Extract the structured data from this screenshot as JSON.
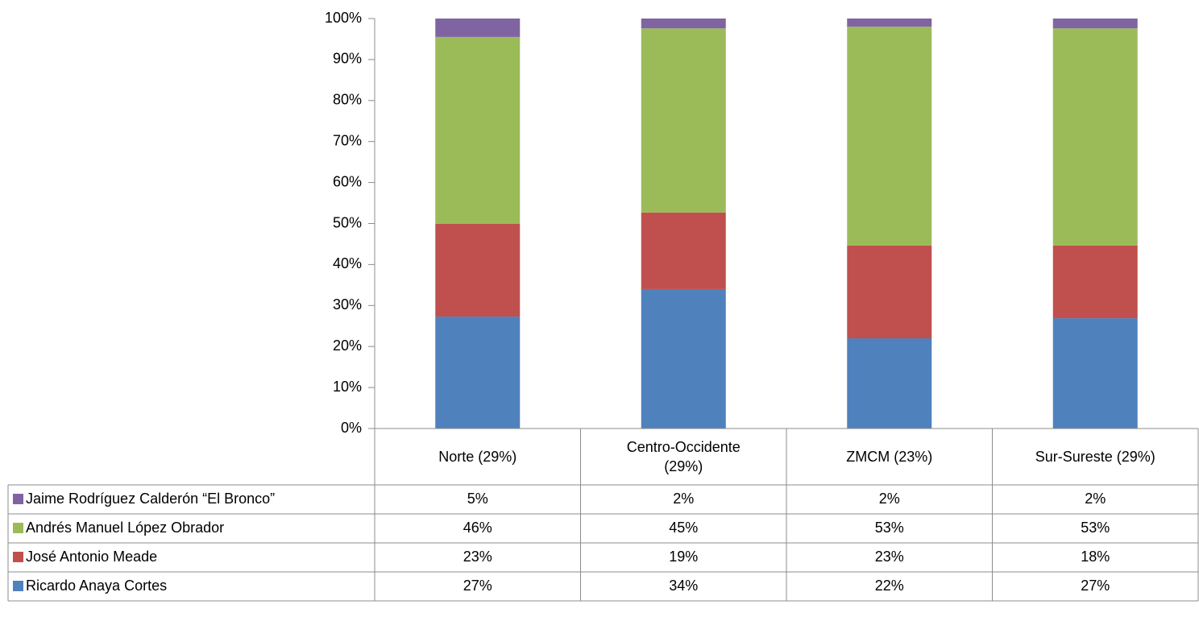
{
  "chart_data": {
    "type": "stacked_bar",
    "categories": [
      "Norte (29%)",
      "Centro-Occidente (29%)",
      "ZMCM (23%)",
      "Sur-Sureste (29%)"
    ],
    "series": [
      {
        "name": "Ricardo Anaya Cortes",
        "color": "#4f81bd",
        "values": [
          27.3,
          34.0,
          22.0,
          26.9
        ],
        "value_labels": [
          "27%",
          "34%",
          "22%",
          "27%"
        ]
      },
      {
        "name": "José Antonio Meade",
        "color": "#c0504d",
        "values": [
          22.6,
          18.7,
          22.6,
          17.7
        ],
        "value_labels": [
          "23%",
          "19%",
          "23%",
          "18%"
        ]
      },
      {
        "name": "Andrés Manuel López Obrador",
        "color": "#9bbb59",
        "values": [
          45.6,
          44.9,
          53.4,
          53.0
        ],
        "value_labels": [
          "46%",
          "45%",
          "53%",
          "53%"
        ]
      },
      {
        "name": "Jaime Rodríguez Calderón “El Bronco”",
        "color": "#8064a2",
        "values": [
          4.5,
          2.4,
          2.0,
          2.4
        ],
        "value_labels": [
          "5%",
          "2%",
          "2%",
          "2%"
        ]
      }
    ],
    "ylim": [
      0,
      100
    ],
    "yticks": [
      {
        "value": 0,
        "label": "0%"
      },
      {
        "value": 10,
        "label": "10%"
      },
      {
        "value": 20,
        "label": "20%"
      },
      {
        "value": 30,
        "label": "30%"
      },
      {
        "value": 40,
        "label": "40%"
      },
      {
        "value": 50,
        "label": "50%"
      },
      {
        "value": 60,
        "label": "60%"
      },
      {
        "value": 70,
        "label": "70%"
      },
      {
        "value": 80,
        "label": "80%"
      },
      {
        "value": 90,
        "label": "90%"
      },
      {
        "value": 100,
        "label": "100%"
      }
    ],
    "grid": false
  }
}
